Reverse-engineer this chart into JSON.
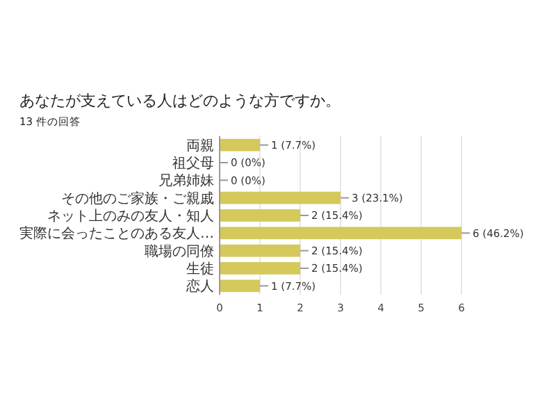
{
  "chart_data": {
    "type": "bar",
    "orientation": "horizontal",
    "title": "あなたが支えている人はどのような方ですか。",
    "subtitle": "13 件の回答",
    "categories": [
      "両親",
      "祖父母",
      "兄弟姉妹",
      "その他のご家族・ご親戚",
      "ネット上のみの友人・知人",
      "実際に会ったことのある友人…",
      "職場の同僚",
      "生徒",
      "恋人"
    ],
    "values": [
      1,
      0,
      0,
      3,
      2,
      6,
      2,
      2,
      1
    ],
    "value_labels": [
      "1 (7.7%)",
      "0 (0%)",
      "0 (0%)",
      "3 (23.1%)",
      "2 (15.4%)",
      "6 (46.2%)",
      "2 (15.4%)",
      "2 (15.4%)",
      "1 (7.7%)"
    ],
    "color": "#d4c95a",
    "xlim": [
      0,
      6
    ],
    "xticks": [
      0,
      1,
      2,
      3,
      4,
      5,
      6
    ],
    "grid": "x"
  }
}
